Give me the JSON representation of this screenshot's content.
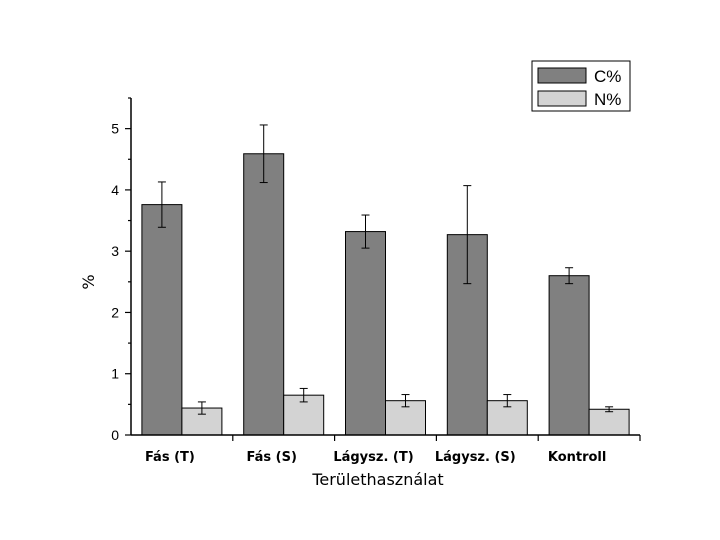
{
  "chart_data": {
    "type": "bar",
    "categories": [
      "Fás (T)",
      "Fás (S)",
      "Lágysz. (T)",
      "Lágysz. (S)",
      "Kontroll"
    ],
    "series": [
      {
        "name": "C%",
        "values": [
          3.76,
          4.59,
          3.32,
          3.27,
          2.6
        ],
        "errors": [
          0.37,
          0.47,
          0.27,
          0.8,
          0.13
        ],
        "color": "#808080"
      },
      {
        "name": "N%",
        "values": [
          0.44,
          0.65,
          0.56,
          0.56,
          0.42
        ],
        "errors": [
          0.1,
          0.11,
          0.1,
          0.1,
          0.04
        ],
        "color": "#d3d3d3"
      }
    ],
    "xlabel": "Területhasználat",
    "ylabel": "%",
    "ylim": [
      0,
      5.5
    ],
    "yticks": [
      0,
      1,
      2,
      3,
      4,
      5
    ],
    "legend_position": "top-right",
    "grid": false
  }
}
